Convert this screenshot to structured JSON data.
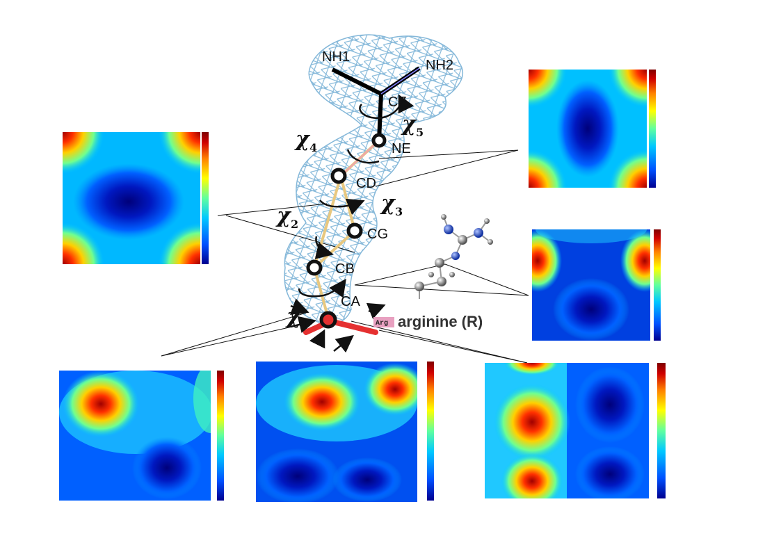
{
  "atoms": {
    "nh1": "NH1",
    "nh2": "NH2",
    "cz": "CZ",
    "ne": "NE",
    "cd": "CD",
    "cg": "CG",
    "cb": "CB",
    "ca": "CA"
  },
  "torsions": {
    "chi1": "χ",
    "chi1_sub": "1",
    "chi2": "χ",
    "chi2_sub": "2",
    "chi3": "χ",
    "chi3_sub": "3",
    "chi4": "χ",
    "chi4_sub": "4",
    "chi5": "χ",
    "chi5_sub": "5"
  },
  "residue": {
    "tag": "Arg",
    "name": "arginine (R)"
  },
  "colors": {
    "mesh": "#7fb5d8",
    "backbone": "#e53030",
    "bond_main": "#e8c880",
    "bond_hl": "#f0a0b0",
    "atom_ring": "#111111",
    "colorbar": [
      "#00008f",
      "#0050ff",
      "#00c8ff",
      "#60ff9f",
      "#ffff00",
      "#ff8000",
      "#d00000",
      "#7f0000"
    ]
  },
  "panels": [
    {
      "id": "top-left",
      "colormap": "jet"
    },
    {
      "id": "top-right",
      "colormap": "jet"
    },
    {
      "id": "mid-right",
      "colormap": "jet"
    },
    {
      "id": "bottom-left",
      "colormap": "jet"
    },
    {
      "id": "bottom-center",
      "colormap": "jet"
    },
    {
      "id": "bottom-right",
      "colormap": "jet"
    }
  ]
}
